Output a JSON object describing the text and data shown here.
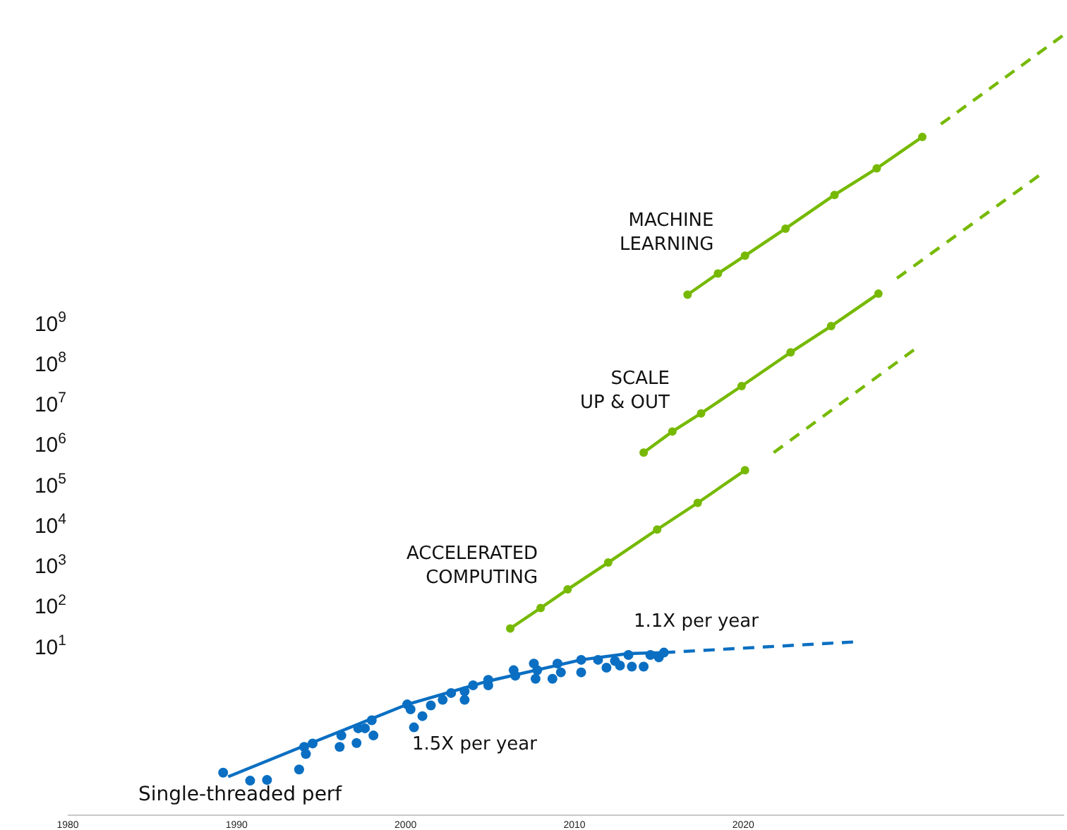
{
  "chart_data": {
    "type": "line",
    "xlim": [
      1980,
      2039
    ],
    "ylim": [
      0.0007,
      1e+17
    ],
    "log": "y",
    "xticks": [
      1980,
      1990,
      2000,
      2010,
      2020
    ],
    "yticks": [
      {
        "value": 10,
        "label": "10$^{1}$"
      },
      {
        "value": 100,
        "label": "10$^{2}$"
      },
      {
        "value": 1000,
        "label": "10$^{3}$"
      },
      {
        "value": 10000,
        "label": "10$^{4}$"
      },
      {
        "value": 100000,
        "label": "10$^{5}$"
      },
      {
        "value": 1000000,
        "label": "10$^{6}$"
      },
      {
        "value": 10000000,
        "label": "10$^{7}$"
      },
      {
        "value": 100000000,
        "label": "10$^{8}$"
      },
      {
        "value": 1000000000,
        "label": "10$^{9}$"
      }
    ],
    "series": [
      {
        "type": "scatter",
        "name": "Single-threaded perf",
        "color": "#0a6fc2",
        "marker": "circle",
        "x": [
          1989.2,
          1990.8,
          1991.8,
          1993.7,
          1994.0,
          1994.1,
          1994.5,
          1996.2,
          1996.1,
          1997.1,
          1997.2,
          1997.6,
          1998.0,
          1998.1,
          2000.1,
          2000.3,
          2000.5,
          2001.0,
          2001.5,
          2002.2,
          2002.7,
          2003.5,
          2003.5,
          2004.0,
          2004.9,
          2004.9,
          2006.4,
          2006.5,
          2007.6,
          2007.7,
          2007.8,
          2008.7,
          2009.0,
          2009.2,
          2010.4,
          2010.4,
          2011.4,
          2011.9,
          2012.4,
          2012.7,
          2013.2,
          2013.4,
          2014.1,
          2014.5,
          2015.0,
          2015.3
        ],
        "values": [
          0.0076,
          0.0048,
          0.005,
          0.0091,
          0.033,
          0.022,
          0.04,
          0.063,
          0.033,
          0.041,
          0.095,
          0.095,
          0.15,
          0.063,
          0.37,
          0.28,
          0.1,
          0.19,
          0.35,
          0.48,
          0.71,
          0.78,
          0.48,
          1.1,
          1.5,
          1.1,
          2.6,
          1.9,
          3.8,
          1.6,
          2.6,
          1.6,
          3.8,
          2.3,
          4.7,
          2.3,
          4.7,
          3.0,
          4.4,
          3.4,
          6.2,
          3.2,
          3.2,
          6.2,
          5.4,
          7.1
        ]
      },
      {
        "color": "#0a6fc2",
        "marker": "none",
        "line_style": "solid",
        "x": [
          1989.5,
          1994.0,
          2000.1,
          2004.9,
          2010.4,
          2013.2,
          2015.3
        ],
        "values": [
          0.006,
          0.035,
          0.37,
          1.4,
          4.7,
          6.7,
          7.1
        ]
      },
      {
        "color": "#0a6fc2",
        "marker": "none",
        "line_style": "dashed",
        "x": [
          2015.3,
          2026.5
        ],
        "values": [
          7.1,
          13
        ]
      },
      {
        "name": "ACCELERATED\nCOMPUTING",
        "color": "#76b900",
        "marker": "circle",
        "line_style": "solid",
        "x": [
          2006.2,
          2008.0,
          2009.6,
          2012.0,
          2014.9,
          2017.3,
          2020.1
        ],
        "values": [
          28,
          90,
          260,
          1200,
          7900,
          36000,
          230000
        ]
      },
      {
        "color": "#76b900",
        "marker": "none",
        "line_style": "dashed",
        "x": [
          2021.8,
          2030.1
        ],
        "values": [
          630000,
          220000000
        ]
      },
      {
        "name": "SCALE\nUP & OUT",
        "color": "#76b900",
        "marker": "circle",
        "line_style": "solid",
        "x": [
          2014.1,
          2015.8,
          2017.5,
          2019.9,
          2022.8,
          2025.2,
          2028.0
        ],
        "values": [
          630000,
          2100000,
          5900000,
          28000000,
          190000000,
          850000000,
          5400000000
        ]
      },
      {
        "color": "#76b900",
        "marker": "none",
        "line_style": "dashed",
        "x": [
          2029.1,
          2037.5
        ],
        "values": [
          13000000000,
          4500000000000
        ]
      },
      {
        "name": "MACHINE\nLEARNING",
        "color": "#76b900",
        "marker": "circle",
        "line_style": "solid",
        "x": [
          2016.7,
          2018.5,
          2020.1,
          2022.5,
          2025.4,
          2027.9,
          2030.6
        ],
        "values": [
          5100000000,
          17000000000,
          47000000000,
          220000000000,
          1500000000000,
          6800000000000,
          41000000000000
        ]
      },
      {
        "color": "#76b900",
        "marker": "none",
        "line_style": "dashed",
        "x": [
          2031.7,
          2038.9
        ],
        "values": [
          85000000000000,
          13000000000000000
        ]
      }
    ],
    "annotations": [
      "1.5X per year",
      "1.1X per year"
    ]
  }
}
